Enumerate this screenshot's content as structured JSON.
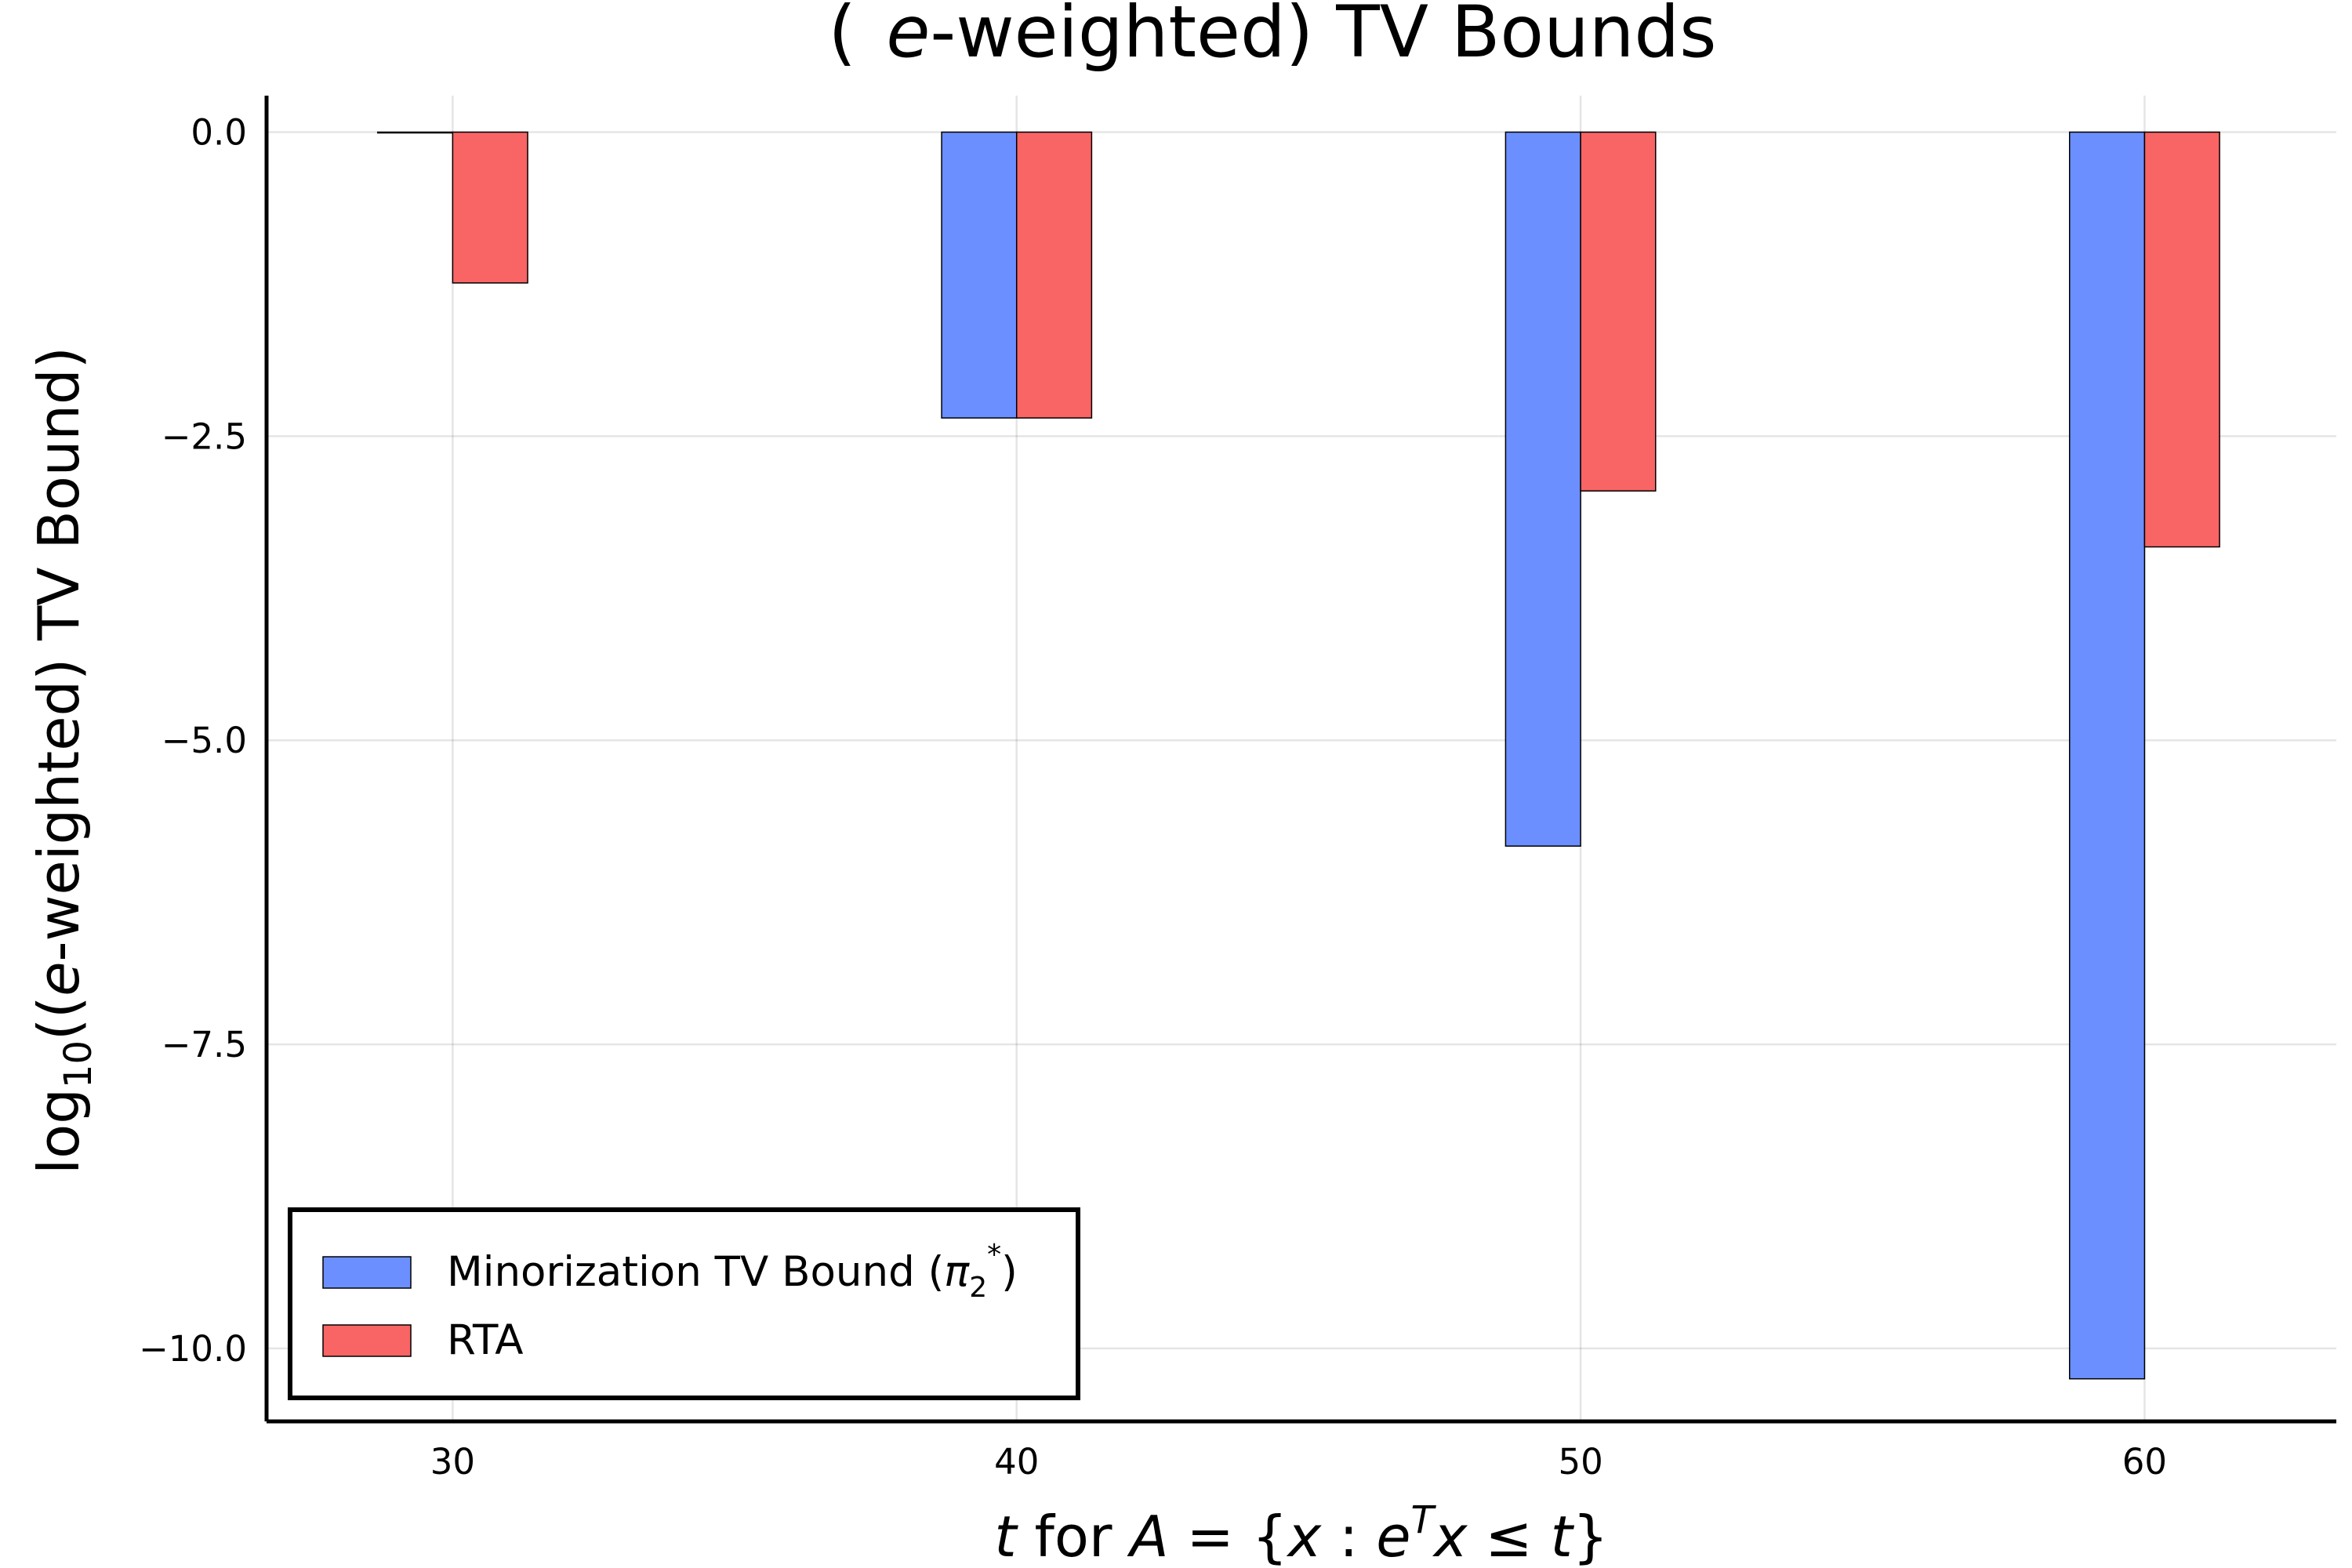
{
  "chart_data": {
    "type": "bar",
    "title": "(e-weighted) TV Bounds",
    "title_parts": {
      "italic": "e",
      "rest": "-weighted) TV Bounds"
    },
    "xlabel": "t for A = {x : e^T x ≤ t}",
    "ylabel": "log10((e-weighted) TV Bound)",
    "ylabel_parts": {
      "base": "log",
      "sub": "10",
      "rest": "((",
      "italic": "e",
      "tail": "-weighted) TV Bound)"
    },
    "categories": [
      30,
      40,
      50,
      60
    ],
    "x_tick_labels": [
      "30",
      "40",
      "50",
      "60"
    ],
    "y_ticks": [
      0.0,
      -2.5,
      -5.0,
      -7.5,
      -10.0
    ],
    "y_tick_labels": [
      "0.0",
      "−2.5",
      "−5.0",
      "−7.5",
      "−10.0"
    ],
    "xlim": [
      26.7,
      63.4
    ],
    "ylim": [
      -10.6,
      0.3
    ],
    "grid": true,
    "legend_position": "bottom-left",
    "series": [
      {
        "name": "Minorization TV Bound (π2*)",
        "color": "#6b8fff",
        "values": [
          0.0,
          -2.35,
          -5.87,
          -10.25
        ]
      },
      {
        "name": "RTA",
        "color": "#f96464",
        "values": [
          -1.24,
          -2.35,
          -2.95,
          -3.41
        ]
      }
    ]
  }
}
